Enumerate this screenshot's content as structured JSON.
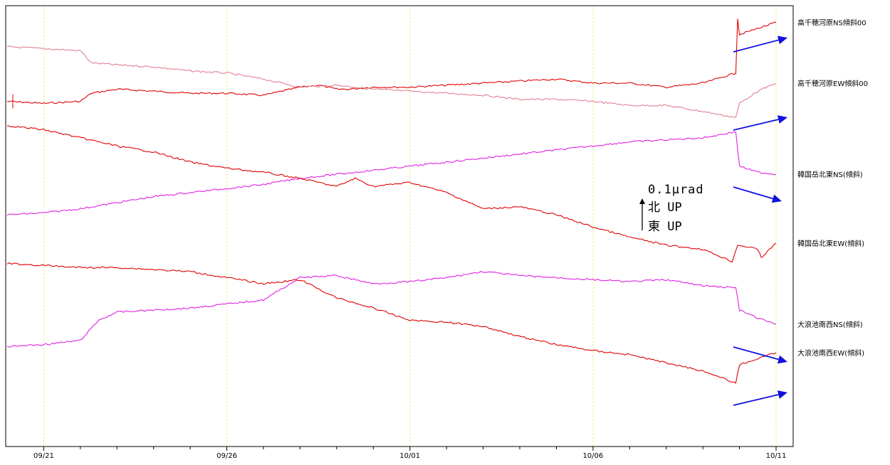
{
  "chart_data": {
    "type": "line",
    "x_unit": "date",
    "xlim": [
      "09/20",
      "10/11"
    ],
    "x_ticks": [
      {
        "pos": "09/21",
        "label": "09/21",
        "major": true
      },
      {
        "pos": "09/22",
        "label": "",
        "major": false
      },
      {
        "pos": "09/23",
        "label": "",
        "major": false
      },
      {
        "pos": "09/24",
        "label": "",
        "major": false
      },
      {
        "pos": "09/25",
        "label": "",
        "major": false
      },
      {
        "pos": "09/26",
        "label": "09/26",
        "major": true
      },
      {
        "pos": "09/27",
        "label": "",
        "major": false
      },
      {
        "pos": "09/28",
        "label": "",
        "major": false
      },
      {
        "pos": "09/29",
        "label": "",
        "major": false
      },
      {
        "pos": "09/30",
        "label": "",
        "major": false
      },
      {
        "pos": "10/01",
        "label": "10/01",
        "major": true
      },
      {
        "pos": "10/02",
        "label": "",
        "major": false
      },
      {
        "pos": "10/03",
        "label": "",
        "major": false
      },
      {
        "pos": "10/04",
        "label": "",
        "major": false
      },
      {
        "pos": "10/05",
        "label": "",
        "major": false
      },
      {
        "pos": "10/06",
        "label": "10/06",
        "major": true
      },
      {
        "pos": "10/07",
        "label": "",
        "major": false
      },
      {
        "pos": "10/08",
        "label": "",
        "major": false
      },
      {
        "pos": "10/09",
        "label": "",
        "major": false
      },
      {
        "pos": "10/10",
        "label": "",
        "major": false
      },
      {
        "pos": "10/11",
        "label": "10/11",
        "major": true
      }
    ],
    "vertical_gridlines": [
      "09/21",
      "09/26",
      "10/01",
      "10/06",
      "10/11"
    ],
    "gridline_color": "#f2f0a0",
    "ylim": [
      0,
      10
    ],
    "y_axis_labels": "none",
    "series": [
      {
        "name": "高千穂河原NS傾斜00",
        "color": "#e00000",
        "x": [
          "09/20",
          "09/21",
          "09/22",
          "09/22.3",
          "09/23",
          "09/24",
          "09/25",
          "09/26",
          "09/27",
          "09/28",
          "09/28.5",
          "09/29",
          "09/29.3",
          "09/30",
          "10/01",
          "10/02",
          "10/03",
          "10/04",
          "10/05",
          "10/06",
          "10/07",
          "10/08",
          "10/09",
          "10/09.9",
          "10/09.95",
          "10/10",
          "10/10.5",
          "10/11"
        ],
        "values": [
          7.85,
          7.8,
          7.85,
          8.05,
          8.15,
          8.1,
          8.05,
          8.05,
          8.0,
          8.2,
          8.25,
          8.15,
          8.15,
          8.2,
          8.2,
          8.25,
          8.3,
          8.35,
          8.4,
          8.3,
          8.3,
          8.2,
          8.3,
          8.55,
          9.9,
          9.5,
          9.65,
          9.8
        ]
      },
      {
        "name": "高千穂河原EW傾斜00",
        "color": "#e08090",
        "x": [
          "09/20",
          "09/21",
          "09/22",
          "09/22.3",
          "09/23",
          "09/24",
          "09/25",
          "09/26",
          "09/27",
          "09/28",
          "09/29",
          "09/30",
          "10/01",
          "10/02",
          "10/03",
          "10/04",
          "10/05",
          "10/06",
          "10/07",
          "10/08",
          "10/09",
          "10/09.9",
          "10/10",
          "10/10.5",
          "10/11"
        ],
        "values": [
          9.2,
          9.15,
          9.1,
          8.8,
          8.75,
          8.7,
          8.6,
          8.55,
          8.4,
          8.2,
          8.25,
          8.15,
          8.1,
          8.05,
          8.0,
          7.9,
          7.9,
          7.85,
          7.75,
          7.75,
          7.6,
          7.45,
          7.8,
          8.1,
          8.3
        ]
      },
      {
        "name": "韓国岳北東NS(傾斜)",
        "color": "#e020e0",
        "x": [
          "09/20",
          "09/21",
          "09/22",
          "09/23",
          "09/24",
          "09/25",
          "09/26",
          "09/27",
          "09/28",
          "09/29",
          "09/30",
          "10/01",
          "10/02",
          "10/03",
          "10/04",
          "10/05",
          "10/06",
          "10/07",
          "10/08",
          "10/09",
          "10/09.9",
          "10/10",
          "10/10.5",
          "10/11"
        ],
        "values": [
          5.05,
          5.1,
          5.2,
          5.35,
          5.5,
          5.6,
          5.7,
          5.8,
          5.95,
          6.05,
          6.15,
          6.25,
          6.35,
          6.45,
          6.55,
          6.65,
          6.75,
          6.85,
          6.9,
          6.95,
          7.1,
          6.25,
          6.1,
          6.05
        ]
      },
      {
        "name": "韓国岳北東EW(傾斜)",
        "color": "#e00000",
        "x": [
          "09/20",
          "09/21",
          "09/22",
          "09/23",
          "09/24",
          "09/25",
          "09/26",
          "09/27",
          "09/28",
          "09/29",
          "09/29.5",
          "09/30",
          "10/01",
          "10/02",
          "10/03",
          "10/04",
          "10/05",
          "10/06",
          "10/07",
          "10/08",
          "10/09",
          "10/09.8",
          "10/09.95",
          "10/10",
          "10/10.5",
          "10/10.6",
          "10/11"
        ],
        "values": [
          7.25,
          7.15,
          6.95,
          6.75,
          6.6,
          6.35,
          6.2,
          6.1,
          5.95,
          5.75,
          5.95,
          5.75,
          5.85,
          5.6,
          5.2,
          5.25,
          5.05,
          4.75,
          4.5,
          4.3,
          4.2,
          3.9,
          4.3,
          4.3,
          4.2,
          4.0,
          4.35
        ]
      },
      {
        "name": "大浪池南西NS(傾斜)",
        "color": "#e020e0",
        "x": [
          "09/20",
          "09/21",
          "09/22",
          "09/22.5",
          "09/23",
          "09/24",
          "09/25",
          "09/26",
          "09/27",
          "09/28",
          "09/29",
          "09/30",
          "10/01",
          "10/02",
          "10/03",
          "10/04",
          "10/05",
          "10/06",
          "10/07",
          "10/08",
          "10/09",
          "10/09.9",
          "10/10",
          "10/10.5",
          "10/11"
        ],
        "values": [
          1.8,
          1.85,
          1.95,
          2.45,
          2.65,
          2.7,
          2.75,
          2.85,
          2.95,
          3.5,
          3.55,
          3.35,
          3.4,
          3.5,
          3.65,
          3.55,
          3.5,
          3.45,
          3.4,
          3.45,
          3.3,
          3.25,
          2.7,
          2.5,
          2.35
        ]
      },
      {
        "name": "大浪池南西EW(傾斜)",
        "color": "#e00000",
        "x": [
          "09/20",
          "09/21",
          "09/22",
          "09/23",
          "09/24",
          "09/25",
          "09/26",
          "09/27",
          "09/28",
          "09/29",
          "09/30",
          "10/01",
          "10/02",
          "10/03",
          "10/04",
          "10/05",
          "10/06",
          "10/07",
          "10/08",
          "10/09",
          "10/09.9",
          "10/10",
          "10/10.5",
          "10/11"
        ],
        "values": [
          3.85,
          3.8,
          3.75,
          3.75,
          3.7,
          3.65,
          3.5,
          3.35,
          3.45,
          3.0,
          2.75,
          2.45,
          2.4,
          2.3,
          2.05,
          1.85,
          1.7,
          1.6,
          1.4,
          1.2,
          0.9,
          1.35,
          1.5,
          1.65
        ]
      }
    ],
    "annotations": {
      "scale_label": "0.1μrad",
      "north_label": "北 UP",
      "east_label": "東 UP"
    },
    "arrow_color": "#1010e0"
  }
}
